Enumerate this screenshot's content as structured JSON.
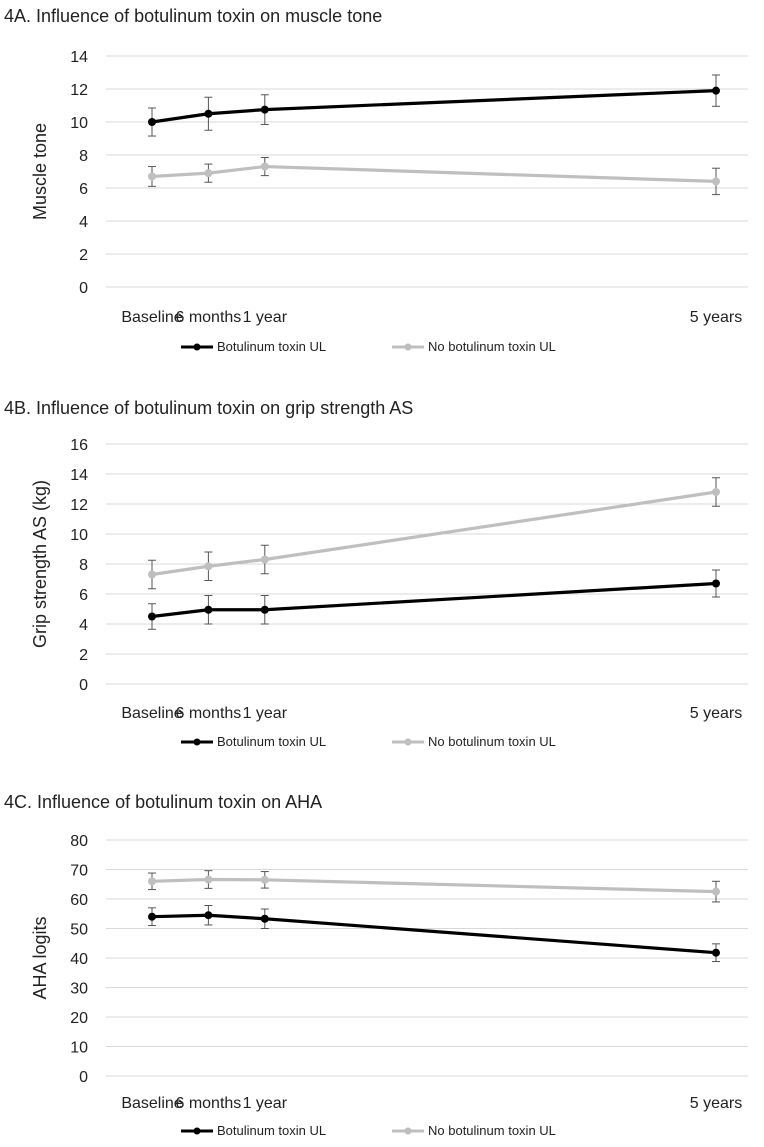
{
  "chart_data": [
    {
      "type": "line",
      "title": "4A. Influence  of botulinum toxin on muscle tone",
      "xlabel": "",
      "ylabel": "Muscle tone",
      "categories": [
        "Baseline",
        "6 months",
        "1 year",
        "5 years"
      ],
      "x_positions_years": [
        0,
        0.5,
        1,
        5
      ],
      "yticks": [
        0,
        2,
        4,
        6,
        8,
        10,
        12,
        14
      ],
      "ylim": [
        0,
        14
      ],
      "grid": true,
      "legend_position": "bottom",
      "series": [
        {
          "name": "Botulinum toxin UL",
          "color": "#000000",
          "values": [
            10.0,
            10.5,
            10.75,
            11.9
          ],
          "err": [
            0.85,
            1.0,
            0.9,
            0.95
          ]
        },
        {
          "name": "No botulinum toxin UL",
          "color": "#bfbfbf",
          "values": [
            6.7,
            6.9,
            7.3,
            6.4
          ],
          "err": [
            0.6,
            0.55,
            0.55,
            0.8
          ]
        }
      ]
    },
    {
      "type": "line",
      "title": "4B. Influence  of botulinum toxin on grip strength AS",
      "xlabel": "",
      "ylabel": "Grip strength AS (kg)",
      "categories": [
        "Baseline",
        "6 months",
        "1 year",
        "5 years"
      ],
      "x_positions_years": [
        0,
        0.5,
        1,
        5
      ],
      "yticks": [
        0,
        2,
        4,
        6,
        8,
        10,
        12,
        14,
        16
      ],
      "ylim": [
        0,
        16
      ],
      "grid": true,
      "legend_position": "bottom",
      "series": [
        {
          "name": "Botulinum toxin UL",
          "color": "#000000",
          "values": [
            4.5,
            4.95,
            4.95,
            6.7
          ],
          "err": [
            0.85,
            0.95,
            0.95,
            0.9
          ]
        },
        {
          "name": "No botulinum toxin UL",
          "color": "#bfbfbf",
          "values": [
            7.3,
            7.85,
            8.3,
            12.8
          ],
          "err": [
            0.95,
            0.95,
            0.95,
            0.95
          ]
        }
      ]
    },
    {
      "type": "line",
      "title": "4C. Influence  of botulinum toxin on AHA",
      "xlabel": "",
      "ylabel": "AHA logits",
      "categories": [
        "Baseline",
        "6 months",
        "1 year",
        "5 years"
      ],
      "x_positions_years": [
        0,
        0.5,
        1,
        5
      ],
      "yticks": [
        0,
        10,
        20,
        30,
        40,
        50,
        60,
        70,
        80
      ],
      "ylim": [
        0,
        80
      ],
      "grid": true,
      "legend_position": "bottom",
      "series": [
        {
          "name": "Botulinum toxin UL",
          "color": "#000000",
          "values": [
            54.0,
            54.5,
            53.3,
            41.8
          ],
          "err": [
            3.0,
            3.3,
            3.3,
            3.0
          ]
        },
        {
          "name": "No botulinum toxin UL",
          "color": "#bfbfbf",
          "values": [
            66.0,
            66.6,
            66.5,
            62.5
          ],
          "err": [
            2.8,
            3.0,
            2.8,
            3.5
          ]
        }
      ]
    }
  ]
}
